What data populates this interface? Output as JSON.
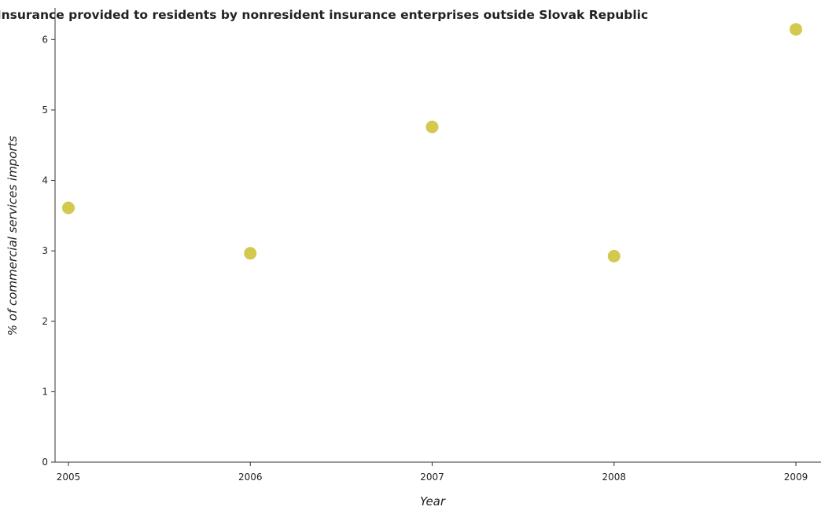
{
  "chart_data": {
    "type": "scatter",
    "title": "Insurance provided to residents by nonresident insurance enterprises outside Slovak Republic",
    "xlabel": "Year",
    "ylabel": "% of commercial services imports",
    "categories": [
      "2005",
      "2006",
      "2007",
      "2008",
      "2009"
    ],
    "series": [
      {
        "values": [
          3.61,
          2.965,
          4.76,
          2.925,
          6.145
        ]
      }
    ],
    "ylim": [
      0,
      6.45
    ],
    "yticks": [
      "0",
      "1",
      "2",
      "3",
      "4",
      "5",
      "6"
    ],
    "grid": false,
    "legend": "none",
    "marker_color": "#d4c94f"
  }
}
